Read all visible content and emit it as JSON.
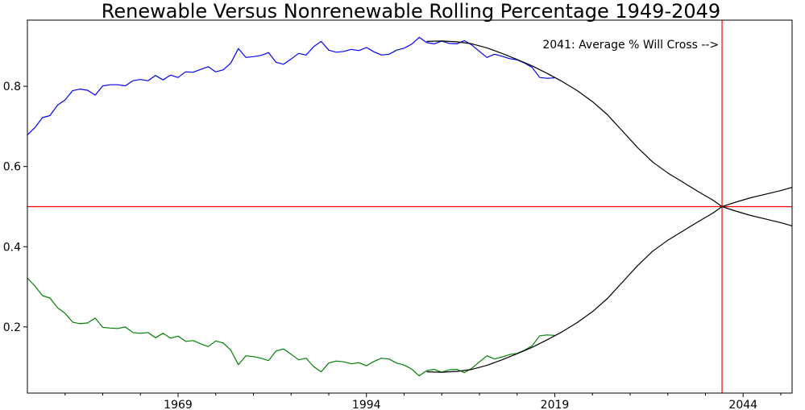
{
  "chart_data": {
    "type": "line",
    "title": "Renewable Versus Nonrenewable Rolling Percentage 1949-2049",
    "xlabel": "",
    "ylabel": "",
    "xlim": [
      1949,
      2050.5
    ],
    "ylim": [
      0.035,
      0.965
    ],
    "x_tick_labels": [
      "1969",
      "1994",
      "2019",
      "2044"
    ],
    "x_major_ticks": [
      1969,
      1994,
      2019,
      2044
    ],
    "x_minor_ticks": [
      1954,
      1959,
      1964,
      1974,
      1979,
      1984,
      1989,
      1999,
      2004,
      2009,
      2014,
      2024,
      2029,
      2034,
      2039,
      2049
    ],
    "y_tick_labels": [
      "0.2",
      "0.4",
      "0.6",
      "0.8"
    ],
    "y_ticks": [
      0.2,
      0.4,
      0.6,
      0.8
    ],
    "grid": false,
    "legend": "none",
    "reference_lines": {
      "horizontal_y": 0.5,
      "vertical_x": 2041.2,
      "color": "#ff0000"
    },
    "annotation": {
      "text": "2041: Average % Will Cross -->",
      "x": 2041,
      "y": 0.905
    },
    "series": [
      {
        "color": "#0000ff",
        "x": [
          1949,
          1950,
          1951,
          1952,
          1953,
          1954,
          1955,
          1956,
          1957,
          1958,
          1959,
          1960,
          1961,
          1962,
          1963,
          1964,
          1965,
          1966,
          1967,
          1968,
          1969,
          1970,
          1971,
          1972,
          1973,
          1974,
          1975,
          1976,
          1977,
          1978,
          1979,
          1980,
          1981,
          1982,
          1983,
          1984,
          1985,
          1986,
          1987,
          1988,
          1989,
          1990,
          1991,
          1992,
          1993,
          1994,
          1995,
          1996,
          1997,
          1998,
          1999,
          2000,
          2001,
          2002,
          2003,
          2004,
          2005,
          2006,
          2007,
          2008,
          2009,
          2010,
          2011,
          2012,
          2013,
          2014,
          2015,
          2016,
          2017,
          2018,
          2019
        ],
        "y": [
          0.679,
          0.697,
          0.722,
          0.727,
          0.753,
          0.766,
          0.789,
          0.793,
          0.79,
          0.778,
          0.801,
          0.804,
          0.804,
          0.801,
          0.814,
          0.817,
          0.814,
          0.827,
          0.816,
          0.828,
          0.822,
          0.836,
          0.835,
          0.842,
          0.849,
          0.836,
          0.841,
          0.858,
          0.894,
          0.872,
          0.874,
          0.877,
          0.884,
          0.86,
          0.855,
          0.868,
          0.882,
          0.878,
          0.899,
          0.912,
          0.89,
          0.885,
          0.887,
          0.892,
          0.889,
          0.897,
          0.886,
          0.878,
          0.88,
          0.89,
          0.895,
          0.905,
          0.922,
          0.909,
          0.906,
          0.913,
          0.907,
          0.906,
          0.914,
          0.903,
          0.887,
          0.872,
          0.88,
          0.875,
          0.869,
          0.866,
          0.858,
          0.847,
          0.822,
          0.82,
          0.821
        ]
      },
      {
        "color": "#008000",
        "x": [
          1949,
          1950,
          1951,
          1952,
          1953,
          1954,
          1955,
          1956,
          1957,
          1958,
          1959,
          1960,
          1961,
          1962,
          1963,
          1964,
          1965,
          1966,
          1967,
          1968,
          1969,
          1970,
          1971,
          1972,
          1973,
          1974,
          1975,
          1976,
          1977,
          1978,
          1979,
          1980,
          1981,
          1982,
          1983,
          1984,
          1985,
          1986,
          1987,
          1988,
          1989,
          1990,
          1991,
          1992,
          1993,
          1994,
          1995,
          1996,
          1997,
          1998,
          1999,
          2000,
          2001,
          2002,
          2003,
          2004,
          2005,
          2006,
          2007,
          2008,
          2009,
          2010,
          2011,
          2012,
          2013,
          2014,
          2015,
          2016,
          2017,
          2018,
          2019
        ],
        "y": [
          0.322,
          0.302,
          0.278,
          0.272,
          0.248,
          0.234,
          0.212,
          0.208,
          0.21,
          0.222,
          0.199,
          0.197,
          0.196,
          0.2,
          0.186,
          0.184,
          0.186,
          0.173,
          0.184,
          0.172,
          0.177,
          0.164,
          0.166,
          0.158,
          0.151,
          0.165,
          0.16,
          0.142,
          0.106,
          0.128,
          0.126,
          0.122,
          0.116,
          0.14,
          0.145,
          0.132,
          0.118,
          0.122,
          0.101,
          0.088,
          0.11,
          0.115,
          0.113,
          0.108,
          0.111,
          0.103,
          0.114,
          0.122,
          0.12,
          0.11,
          0.105,
          0.095,
          0.078,
          0.091,
          0.094,
          0.087,
          0.093,
          0.094,
          0.086,
          0.097,
          0.113,
          0.128,
          0.12,
          0.125,
          0.131,
          0.134,
          0.142,
          0.153,
          0.178,
          0.18,
          0.179
        ]
      },
      {
        "color": "#000000",
        "x": [
          2002,
          2004,
          2006,
          2008,
          2010,
          2012,
          2014,
          2016,
          2018,
          2020,
          2022,
          2024,
          2026,
          2028,
          2030,
          2032,
          2034,
          2036,
          2038,
          2040,
          2041.2,
          2043,
          2045,
          2047,
          2049,
          2050.5
        ],
        "y": [
          0.912,
          0.913,
          0.911,
          0.906,
          0.896,
          0.882,
          0.867,
          0.851,
          0.832,
          0.812,
          0.789,
          0.762,
          0.729,
          0.688,
          0.647,
          0.611,
          0.584,
          0.561,
          0.538,
          0.516,
          0.5,
          0.489,
          0.478,
          0.469,
          0.46,
          0.452
        ]
      },
      {
        "color": "#000000",
        "x": [
          2002,
          2004,
          2006,
          2008,
          2010,
          2012,
          2014,
          2016,
          2018,
          2020,
          2022,
          2024,
          2026,
          2028,
          2030,
          2032,
          2034,
          2036,
          2038,
          2040,
          2041.2,
          2043,
          2045,
          2047,
          2049,
          2050.5
        ],
        "y": [
          0.088,
          0.087,
          0.089,
          0.094,
          0.104,
          0.118,
          0.133,
          0.149,
          0.168,
          0.188,
          0.211,
          0.238,
          0.271,
          0.312,
          0.353,
          0.389,
          0.416,
          0.439,
          0.462,
          0.484,
          0.5,
          0.511,
          0.522,
          0.531,
          0.54,
          0.548
        ]
      }
    ]
  }
}
